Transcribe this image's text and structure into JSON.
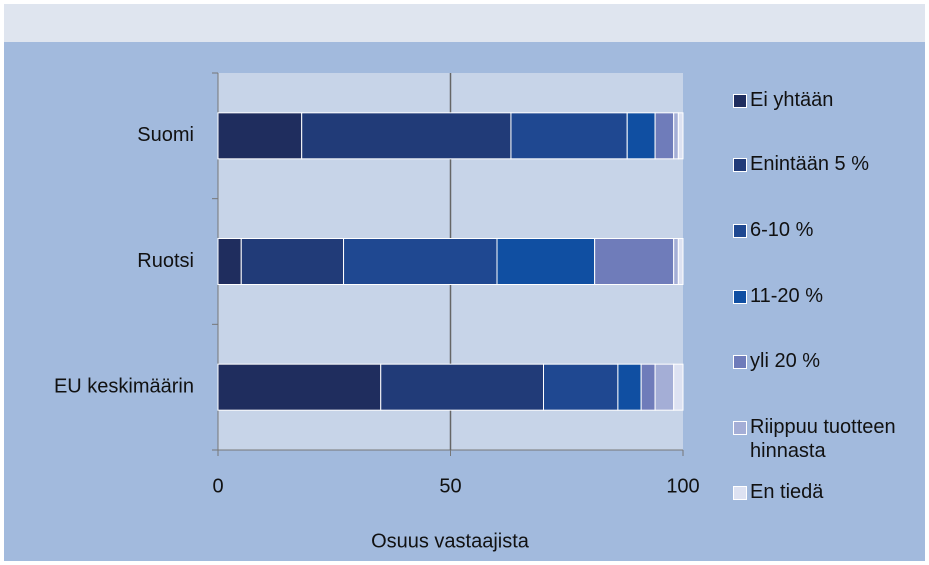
{
  "chart_data": {
    "type": "stacked_barh",
    "categories": [
      "Suomi",
      "Ruotsi",
      "EU keskimäärin"
    ],
    "series": [
      {
        "name": "Ei yhtään",
        "color": "#1f2d5e",
        "values": [
          18,
          5,
          35
        ]
      },
      {
        "name": "Enintään 5 %",
        "color": "#213b78",
        "values": [
          45,
          22,
          35
        ]
      },
      {
        "name": "6-10 %",
        "color": "#1f4891",
        "values": [
          25,
          33,
          16
        ]
      },
      {
        "name": "11-20 %",
        "color": "#104fa2",
        "values": [
          6,
          21,
          5
        ]
      },
      {
        "name": "yli 20 %",
        "color": "#6f7cba",
        "values": [
          4,
          17,
          3
        ]
      },
      {
        "name": "Riippuu tuotteen hinnasta",
        "color": "#a4aed6",
        "values": [
          1,
          1,
          4
        ]
      },
      {
        "name": "En tiedä",
        "color": "#dde2f2",
        "values": [
          1,
          1,
          2
        ]
      }
    ],
    "xlabel": "Osuus vastaajista",
    "xlim": [
      0,
      100
    ],
    "xticks": [
      0,
      50,
      100
    ],
    "grid": true
  }
}
